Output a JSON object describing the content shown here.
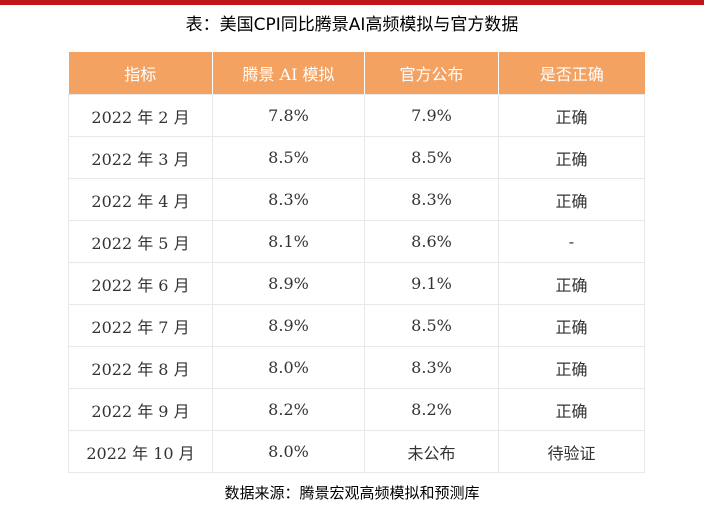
{
  "title": "表：美国CPI同比腾景AI高频模拟与官方数据",
  "table": {
    "headers": [
      "指标",
      "腾景 AI 模拟",
      "官方公布",
      "是否正确"
    ],
    "rows": [
      [
        "2022 年 2 月",
        "7.8%",
        "7.9%",
        "正确"
      ],
      [
        "2022 年 3 月",
        "8.5%",
        "8.5%",
        "正确"
      ],
      [
        "2022 年 4 月",
        "8.3%",
        "8.3%",
        "正确"
      ],
      [
        "2022 年 5 月",
        "8.1%",
        "8.6%",
        "-"
      ],
      [
        "2022 年 6 月",
        "8.9%",
        "9.1%",
        "正确"
      ],
      [
        "2022 年 7 月",
        "8.9%",
        "8.5%",
        "正确"
      ],
      [
        "2022 年 8 月",
        "8.0%",
        "8.3%",
        "正确"
      ],
      [
        "2022 年 9 月",
        "8.2%",
        "8.2%",
        "正确"
      ],
      [
        "2022 年 10 月",
        "8.0%",
        "未公布",
        "待验证"
      ]
    ]
  },
  "source": "数据来源：腾景宏观高频模拟和预测库",
  "colors": {
    "header_bg": "#f4a262",
    "header_text": "#ffffff",
    "accent_rule": "#c0151b"
  }
}
